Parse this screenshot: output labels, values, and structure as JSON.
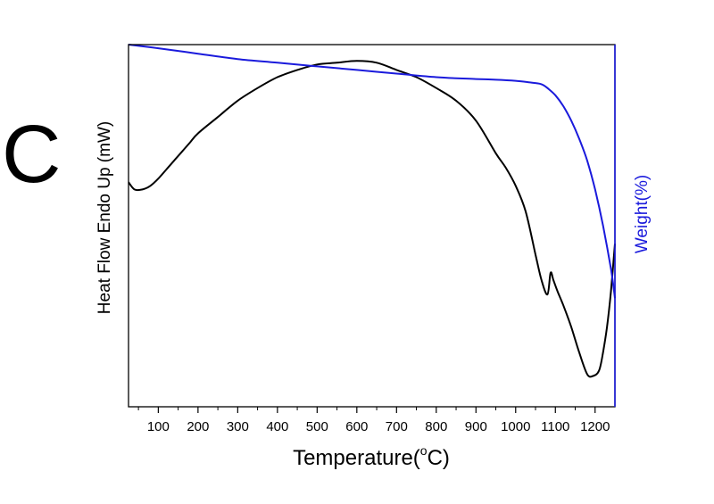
{
  "panel_label": "C",
  "colors": {
    "heat_flow": "#000000",
    "weight": "#1a1adc",
    "frame": "#000000"
  },
  "chart_data": {
    "type": "line",
    "title": "",
    "xlabel_main": "Temperature(",
    "xlabel_sup": "o",
    "xlabel_end": "C)",
    "ylabel_left": "Heat Flow Endo Up (mW)",
    "ylabel_right": "Weight(%)",
    "xlim": [
      25,
      1250
    ],
    "y_left_ticks_labeled": false,
    "y_right_ticks_labeled": false,
    "x_major_ticks": [
      100,
      200,
      300,
      400,
      500,
      600,
      700,
      800,
      900,
      1000,
      1100,
      1200
    ],
    "x_tick_labels": [
      "100",
      "200",
      "300",
      "400",
      "500",
      "600",
      "700",
      "800",
      "900",
      "1000",
      "1100",
      "1200"
    ],
    "series": [
      {
        "name": "Heat Flow Endo Up (mW)",
        "axis": "left",
        "color": "#000000",
        "x": [
          25,
          40,
          60,
          80,
          100,
          120,
          140,
          160,
          180,
          200,
          250,
          300,
          350,
          400,
          450,
          500,
          550,
          600,
          650,
          700,
          750,
          800,
          850,
          900,
          950,
          975,
          1000,
          1025,
          1050,
          1065,
          1080,
          1088,
          1095,
          1105,
          1120,
          1140,
          1160,
          1180,
          1195,
          1210,
          1220,
          1230,
          1240,
          1250
        ],
        "y": [
          0.62,
          0.6,
          0.6,
          0.61,
          0.63,
          0.655,
          0.68,
          0.705,
          0.73,
          0.755,
          0.8,
          0.845,
          0.88,
          0.91,
          0.93,
          0.945,
          0.95,
          0.955,
          0.95,
          0.93,
          0.91,
          0.88,
          0.845,
          0.79,
          0.7,
          0.66,
          0.61,
          0.54,
          0.42,
          0.35,
          0.31,
          0.37,
          0.35,
          0.32,
          0.28,
          0.22,
          0.15,
          0.09,
          0.085,
          0.1,
          0.15,
          0.22,
          0.32,
          0.45
        ]
      },
      {
        "name": "Weight(%)",
        "axis": "right",
        "color": "#1a1adc",
        "x": [
          25,
          100,
          200,
          300,
          400,
          500,
          600,
          700,
          800,
          900,
          950,
          1000,
          1040,
          1060,
          1070,
          1080,
          1100,
          1120,
          1140,
          1160,
          1180,
          1200,
          1220,
          1240,
          1250
        ],
        "y": [
          1.0,
          0.99,
          0.975,
          0.96,
          0.95,
          0.94,
          0.93,
          0.92,
          0.91,
          0.905,
          0.903,
          0.9,
          0.895,
          0.892,
          0.888,
          0.88,
          0.86,
          0.83,
          0.79,
          0.74,
          0.68,
          0.6,
          0.5,
          0.38,
          0.3
        ]
      }
    ]
  }
}
